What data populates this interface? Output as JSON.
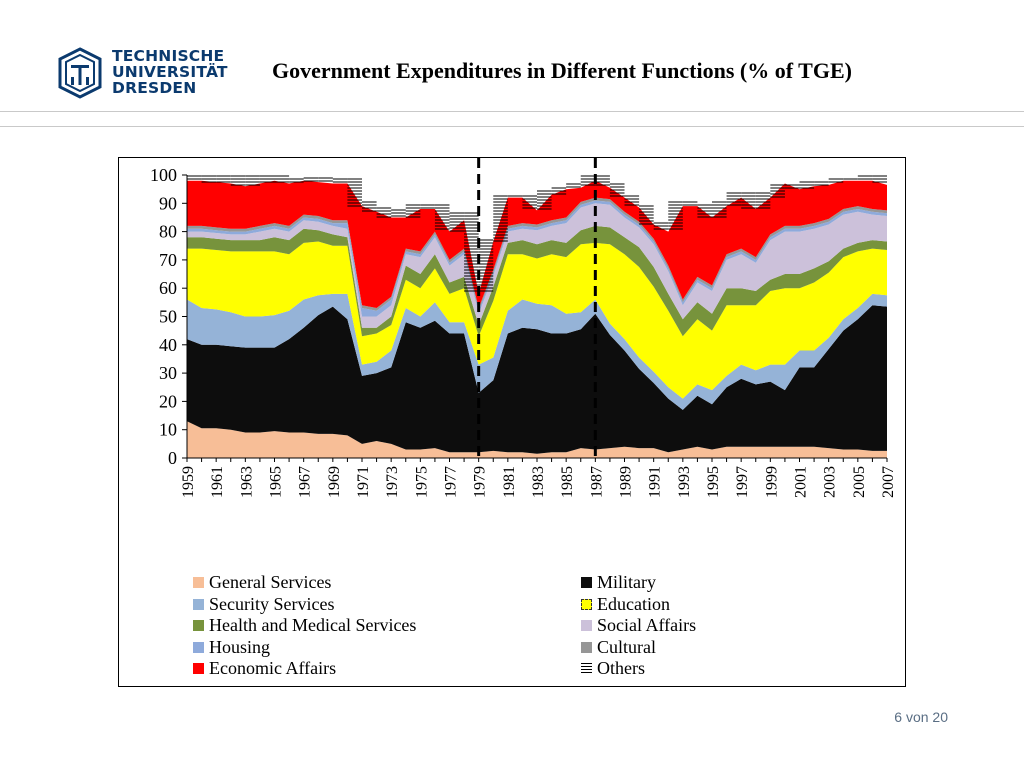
{
  "header": {
    "logo_lines": [
      "TECHNISCHE",
      "UNIVERSITÄT",
      "DRESDEN"
    ],
    "title": "Government Expenditures in Different Functions (% of TGE)"
  },
  "footer": {
    "page_number": "6 von 20"
  },
  "colors": {
    "logo": "#0b3a6e",
    "general_services": "#f7be97",
    "military": "#0d0d0d",
    "security_services": "#95b3d7",
    "education": "#ffff00",
    "health": "#77933c",
    "social_affairs": "#ccc1da",
    "housing": "#8eaadb",
    "cultural": "#969696",
    "economic_affairs": "#ff0000",
    "others": "#ffffff"
  },
  "chart_data": {
    "type": "area",
    "stacked": true,
    "title": "",
    "xlabel": "",
    "ylabel": "",
    "ylim": [
      0,
      100
    ],
    "y_ticks": [
      0,
      10,
      20,
      30,
      40,
      50,
      60,
      70,
      80,
      90,
      100
    ],
    "x_tick_labels": [
      "1959",
      "1961",
      "1963",
      "1965",
      "1967",
      "1969",
      "1971",
      "1973",
      "1975",
      "1977",
      "1979",
      "1981",
      "1983",
      "1985",
      "1987",
      "1989",
      "1991",
      "1993",
      "1995",
      "1997",
      "1999",
      "2001",
      "2003",
      "2005",
      "2007"
    ],
    "x": [
      1959,
      1960,
      1961,
      1962,
      1963,
      1964,
      1965,
      1966,
      1967,
      1968,
      1969,
      1970,
      1971,
      1972,
      1973,
      1974,
      1975,
      1976,
      1977,
      1978,
      1979,
      1980,
      1981,
      1982,
      1983,
      1984,
      1985,
      1986,
      1987,
      1988,
      1989,
      1990,
      1991,
      1992,
      1993,
      1994,
      1995,
      1996,
      1997,
      1998,
      1999,
      2000,
      2001,
      2002,
      2003,
      2004,
      2005,
      2006,
      2007
    ],
    "vertical_dashed_lines_at": [
      1979,
      1987
    ],
    "legend_position": "bottom",
    "series": [
      {
        "name": "General Services",
        "color_key": "general_services",
        "values": [
          13,
          10.5,
          10.5,
          10,
          9,
          9,
          9.5,
          9,
          9,
          8.5,
          8.5,
          8,
          5,
          6,
          5,
          3,
          3,
          3.5,
          2,
          2,
          2,
          2.5,
          2,
          2,
          1.5,
          2,
          2,
          3.5,
          3,
          3.5,
          4,
          3.5,
          3.5,
          2,
          3,
          4,
          3,
          4,
          4,
          4,
          4,
          4,
          4,
          4,
          3.5,
          3,
          3,
          2.5,
          2.5
        ]
      },
      {
        "name": "Military",
        "color_key": "military",
        "values": [
          29,
          29.5,
          29.5,
          29.5,
          30,
          30,
          29.5,
          33,
          37,
          42,
          45,
          41,
          24,
          24,
          27,
          45,
          43,
          45,
          42,
          42,
          21,
          25,
          42,
          44,
          44,
          42,
          42,
          42,
          48,
          40,
          34,
          28,
          23,
          19,
          14,
          18,
          16,
          21,
          24,
          22,
          23,
          20,
          28,
          28,
          35,
          42,
          46,
          51.5,
          51
        ]
      },
      {
        "name": "Security Services",
        "color_key": "security_services",
        "values": [
          14,
          13,
          12.5,
          12,
          11,
          11,
          11.5,
          10,
          10,
          7,
          4.5,
          9,
          4,
          4,
          6,
          5,
          4,
          6.5,
          4,
          4,
          10,
          8,
          8,
          10,
          9,
          10,
          7,
          6,
          5,
          4,
          4,
          4,
          4,
          4,
          4,
          4,
          5,
          4,
          5,
          5,
          6,
          9,
          6,
          6,
          4,
          4,
          4,
          4,
          4
        ]
      },
      {
        "name": "Education",
        "color_key": "education",
        "values": [
          18,
          21,
          21,
          21.5,
          23,
          23,
          22.5,
          20,
          20,
          19,
          17,
          17,
          10,
          10,
          9,
          10,
          10,
          12,
          10,
          12,
          10,
          20,
          20,
          16,
          16,
          18,
          20,
          24,
          20,
          28,
          30,
          32,
          30,
          27,
          22,
          23,
          21,
          25,
          21,
          23,
          26,
          27,
          22,
          24,
          23,
          22,
          20,
          16,
          16
        ]
      },
      {
        "name": "Health and Medical Services",
        "color_key": "health",
        "values": [
          4,
          4,
          4,
          4,
          4,
          4,
          5,
          5,
          5,
          4,
          4,
          3,
          3,
          2,
          3,
          5,
          5,
          5,
          4,
          4,
          4,
          5,
          4,
          5,
          5,
          5,
          5,
          5,
          6,
          6,
          6,
          7,
          7,
          6,
          6,
          6,
          6,
          6,
          6,
          5,
          4,
          5,
          5,
          5,
          4,
          3,
          3,
          3,
          3
        ]
      },
      {
        "name": "Social Affairs",
        "color_key": "social_affairs",
        "values": [
          2,
          2,
          2,
          2,
          2,
          3,
          3,
          3,
          3,
          3,
          3,
          3,
          4,
          4,
          4,
          4,
          6,
          6,
          6,
          8,
          4,
          4,
          4,
          4,
          5,
          5,
          7,
          8,
          8,
          8,
          7,
          7,
          8,
          8,
          5,
          7,
          8,
          10,
          12,
          10,
          14,
          15,
          15,
          14,
          13,
          12,
          11,
          9,
          9
        ]
      },
      {
        "name": "Housing",
        "color_key": "housing",
        "values": [
          1,
          1,
          1,
          1,
          1,
          1,
          1,
          1,
          1,
          1,
          1,
          2,
          3,
          2,
          2,
          1,
          1,
          1,
          1,
          1,
          1,
          1,
          1,
          1,
          1,
          1,
          1,
          1,
          1,
          1,
          1,
          1,
          1,
          1,
          1,
          1,
          1,
          1,
          1,
          1,
          1,
          1,
          1,
          1,
          1,
          1,
          1,
          1,
          1
        ]
      },
      {
        "name": "Cultural",
        "color_key": "cultural",
        "values": [
          1,
          1,
          1,
          1,
          1,
          1,
          1,
          1,
          1,
          1,
          1,
          1,
          1,
          1,
          1,
          1,
          1,
          1,
          1,
          1,
          1,
          1,
          1,
          1,
          1,
          1,
          1,
          1,
          1,
          1,
          1,
          1,
          1,
          1,
          1,
          1,
          1,
          1,
          1,
          1,
          1,
          1,
          1,
          1,
          1,
          1,
          1,
          1,
          1
        ]
      },
      {
        "name": "Economic Affairs",
        "color_key": "economic_affairs",
        "values": [
          16,
          16,
          16,
          16,
          15,
          15,
          15,
          15,
          12,
          12,
          13,
          13,
          35,
          34,
          28,
          11,
          15,
          8,
          10,
          10,
          5,
          10,
          10,
          9,
          5,
          9,
          10,
          5,
          6,
          4,
          5,
          5,
          5,
          12,
          33,
          25,
          24,
          17,
          18,
          17,
          13,
          15,
          13,
          13,
          12,
          10,
          9,
          10,
          9
        ]
      },
      {
        "name": "Others",
        "color_key": "others",
        "values": [
          2,
          2,
          2.5,
          3,
          4,
          3,
          2,
          2,
          1,
          2,
          2,
          2,
          2,
          2,
          3,
          3,
          2,
          2,
          5,
          3,
          5,
          1,
          1,
          1,
          1,
          2,
          1,
          2,
          2,
          2,
          1,
          1,
          1,
          2,
          2,
          1,
          2,
          2,
          2,
          2,
          2,
          0,
          1,
          2,
          1,
          1,
          1,
          2,
          2
        ]
      }
    ]
  }
}
